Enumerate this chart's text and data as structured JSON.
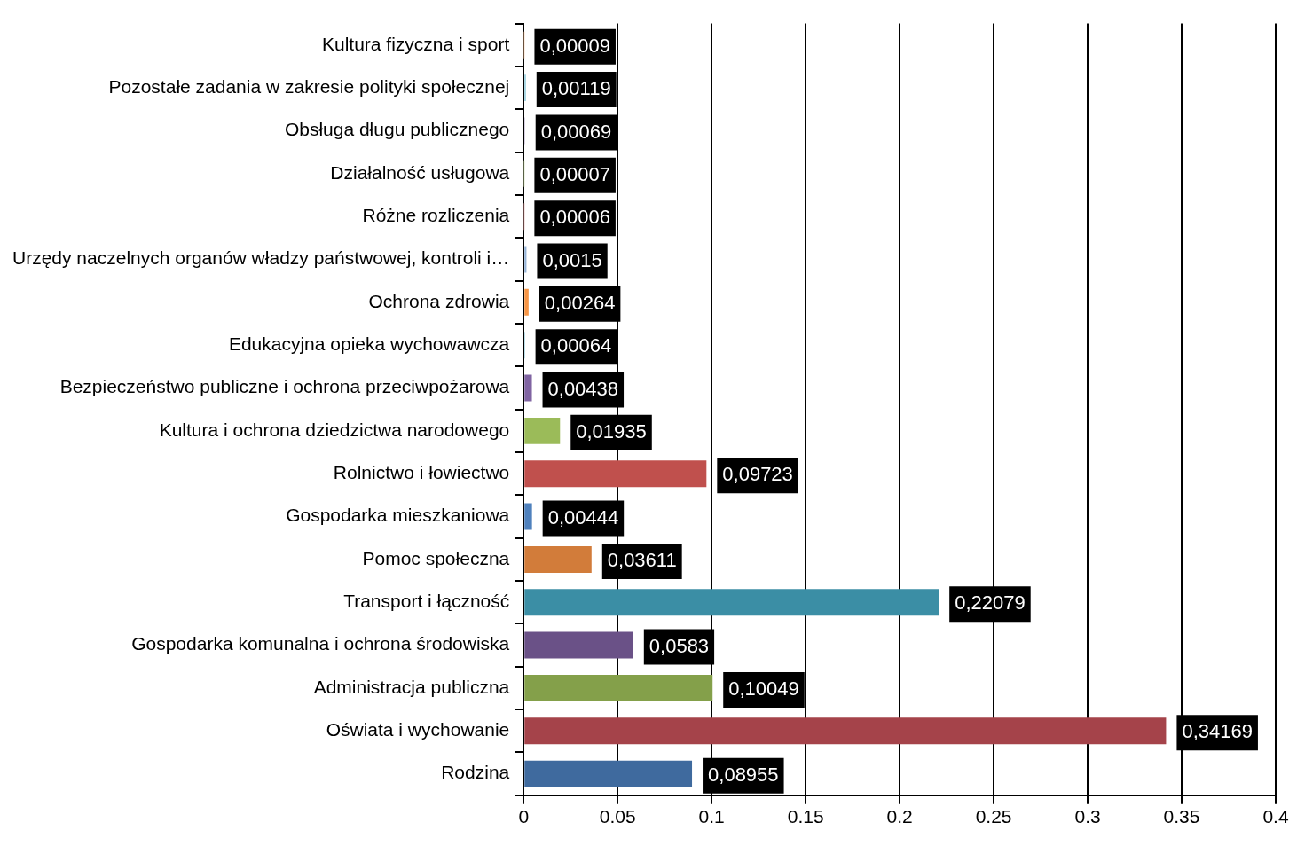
{
  "chart_data": {
    "type": "bar",
    "orientation": "horizontal",
    "categories": [
      "Kultura fizyczna i sport",
      "Pozostałe zadania w zakresie polityki społecznej",
      "Obsługa długu publicznego",
      "Działalność usługowa",
      "Różne rozliczenia",
      "Urzędy naczelnych organów władzy państwowej, kontroli i…",
      "Ochrona zdrowia",
      "Edukacyjna opieka wychowawcza",
      "Bezpieczeństwo publiczne i ochrona przeciwpożarowa",
      "Kultura i ochrona dziedzictwa narodowego",
      "Rolnictwo i łowiectwo",
      "Gospodarka mieszkaniowa",
      "Pomoc społeczna",
      "Transport i łączność",
      "Gospodarka komunalna i ochrona środowiska",
      "Administracja publiczna",
      "Oświata i wychowanie",
      "Rodzina"
    ],
    "values": [
      9e-05,
      0.00119,
      0.00069,
      7e-05,
      6e-05,
      0.0015,
      0.00264,
      0.00064,
      0.00438,
      0.01935,
      0.09723,
      0.00444,
      0.03611,
      0.22079,
      0.0583,
      0.10049,
      0.34169,
      0.08955
    ],
    "value_labels": [
      "0,00009",
      "0,00119",
      "0,00069",
      "0,00007",
      "0,00006",
      "0,0015",
      "0,00264",
      "0,00064",
      "0,00438",
      "0,01935",
      "0,09723",
      "0,00444",
      "0,03611",
      "0,22079",
      "0,0583",
      "0,10049",
      "0,34169",
      "0,08955"
    ],
    "colors": [
      "#fac090",
      "#93cddd",
      "#b3a2c7",
      "#c3d69b",
      "#d99694",
      "#95b3d7",
      "#f79646",
      "#4bacc6",
      "#8064a2",
      "#9bbb59",
      "#c0504d",
      "#4f81bd",
      "#d27c3a",
      "#3b8ea5",
      "#6a5187",
      "#84a04a",
      "#a5434a",
      "#3f6a9e"
    ],
    "xlim": [
      0,
      0.4
    ],
    "xticks": [
      0,
      0.05,
      0.1,
      0.15,
      0.2,
      0.25,
      0.3,
      0.35,
      0.4
    ],
    "grid": "x"
  }
}
